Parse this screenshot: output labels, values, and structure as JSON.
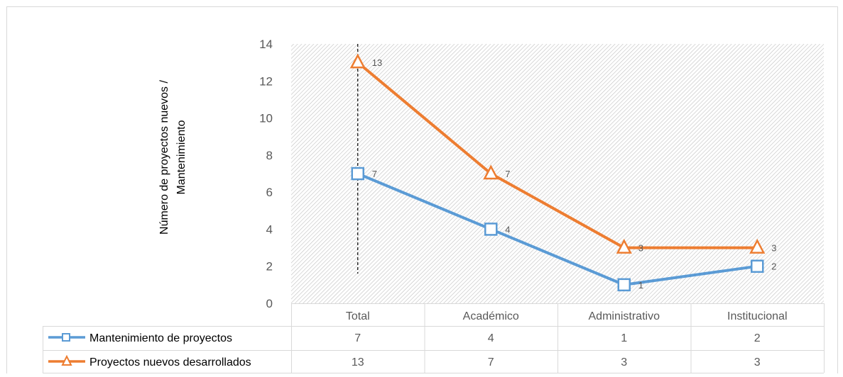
{
  "chart_data": {
    "type": "line",
    "title": "",
    "ylabel": "Número de proyectos nuevos / Mantenimiento",
    "ylabel_lines": [
      "Número de proyectos nuevos /",
      "Mantenimiento"
    ],
    "xlabel": "",
    "categories": [
      "Total",
      "Académico",
      "Administrativo",
      "Institucional"
    ],
    "ylim": [
      0,
      14
    ],
    "yticks": [
      0,
      2,
      4,
      6,
      8,
      10,
      12,
      14
    ],
    "grid": false,
    "plot_background": "diagonal hatch",
    "legend": "data table below chart",
    "reference_line": {
      "category": "Total",
      "style": "dashed"
    },
    "series": [
      {
        "name": "Mantenimiento de proyectos",
        "values": [
          7,
          4,
          1,
          2
        ],
        "color": "#5B9BD5",
        "marker": "square"
      },
      {
        "name": "Proyectos nuevos desarrollados",
        "values": [
          13,
          7,
          3,
          3
        ],
        "color": "#ED7D31",
        "marker": "triangle"
      }
    ]
  },
  "colors": {
    "axis_text": "#595959",
    "table_border": "#D9D9D9",
    "hatch": "#BFBFBF",
    "frame": "#D9D9D9"
  }
}
